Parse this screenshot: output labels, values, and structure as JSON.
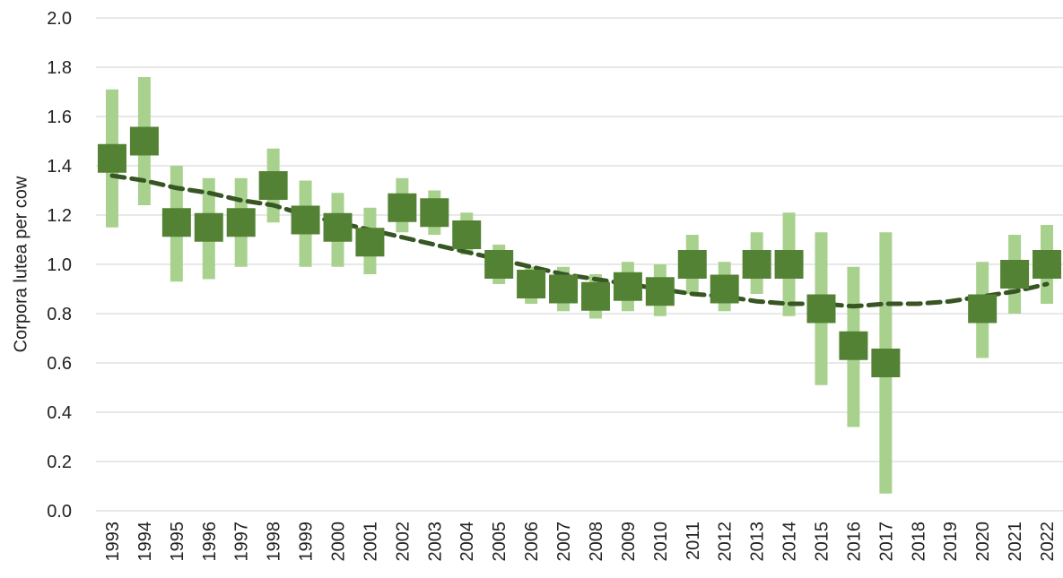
{
  "chart_data": {
    "type": "errorbar",
    "y_label": "Corpora lutea per cow",
    "categories": [
      "1993",
      "1994",
      "1995",
      "1996",
      "1997",
      "1998",
      "1999",
      "2000",
      "2001",
      "2002",
      "2003",
      "2004",
      "2005",
      "2006",
      "2007",
      "2008",
      "2009",
      "2010",
      "2011",
      "2012",
      "2013",
      "2014",
      "2015",
      "2016",
      "2017",
      "2018",
      "2019",
      "2020",
      "2021",
      "2022"
    ],
    "series": [
      {
        "color": "#548235",
        "error_color": "#a9d18e",
        "values": [
          1.43,
          1.5,
          1.17,
          1.15,
          1.17,
          1.32,
          1.18,
          1.15,
          1.09,
          1.23,
          1.21,
          1.12,
          1.0,
          0.92,
          0.9,
          0.87,
          0.91,
          0.89,
          1.0,
          0.9,
          1.0,
          1.0,
          0.82,
          0.67,
          0.6,
          null,
          null,
          0.82,
          0.96,
          1.0
        ],
        "low": [
          1.15,
          1.24,
          0.93,
          0.94,
          0.99,
          1.17,
          0.99,
          0.99,
          0.96,
          1.13,
          1.12,
          1.04,
          0.92,
          0.84,
          0.81,
          0.78,
          0.81,
          0.79,
          0.88,
          0.81,
          0.88,
          0.79,
          0.51,
          0.34,
          0.07,
          null,
          null,
          0.62,
          0.8,
          0.84
        ],
        "high": [
          1.71,
          1.76,
          1.4,
          1.35,
          1.35,
          1.47,
          1.34,
          1.29,
          1.23,
          1.35,
          1.3,
          1.21,
          1.08,
          0.99,
          0.99,
          0.96,
          1.01,
          1.0,
          1.12,
          1.01,
          1.13,
          1.21,
          1.13,
          0.99,
          1.13,
          null,
          null,
          1.01,
          1.12,
          1.16
        ]
      }
    ],
    "trend": {
      "color": "#375623",
      "dashed": true,
      "values": [
        1.36,
        1.34,
        1.31,
        1.29,
        1.26,
        1.24,
        1.2,
        1.17,
        1.14,
        1.11,
        1.08,
        1.05,
        1.02,
        0.99,
        0.96,
        0.94,
        0.92,
        0.9,
        0.88,
        0.87,
        0.85,
        0.84,
        0.84,
        0.83,
        0.84,
        0.84,
        0.85,
        0.87,
        0.89,
        0.92
      ]
    },
    "ylim": [
      0,
      2
    ],
    "yticks": [
      {
        "value": 0,
        "label": "0.0"
      },
      0.2,
      0.4,
      0.6,
      0.8,
      {
        "value": 1,
        "label": "1.0"
      },
      1.2,
      1.4,
      1.6,
      1.8,
      {
        "value": 2,
        "label": "2.0"
      }
    ],
    "grid": true
  }
}
